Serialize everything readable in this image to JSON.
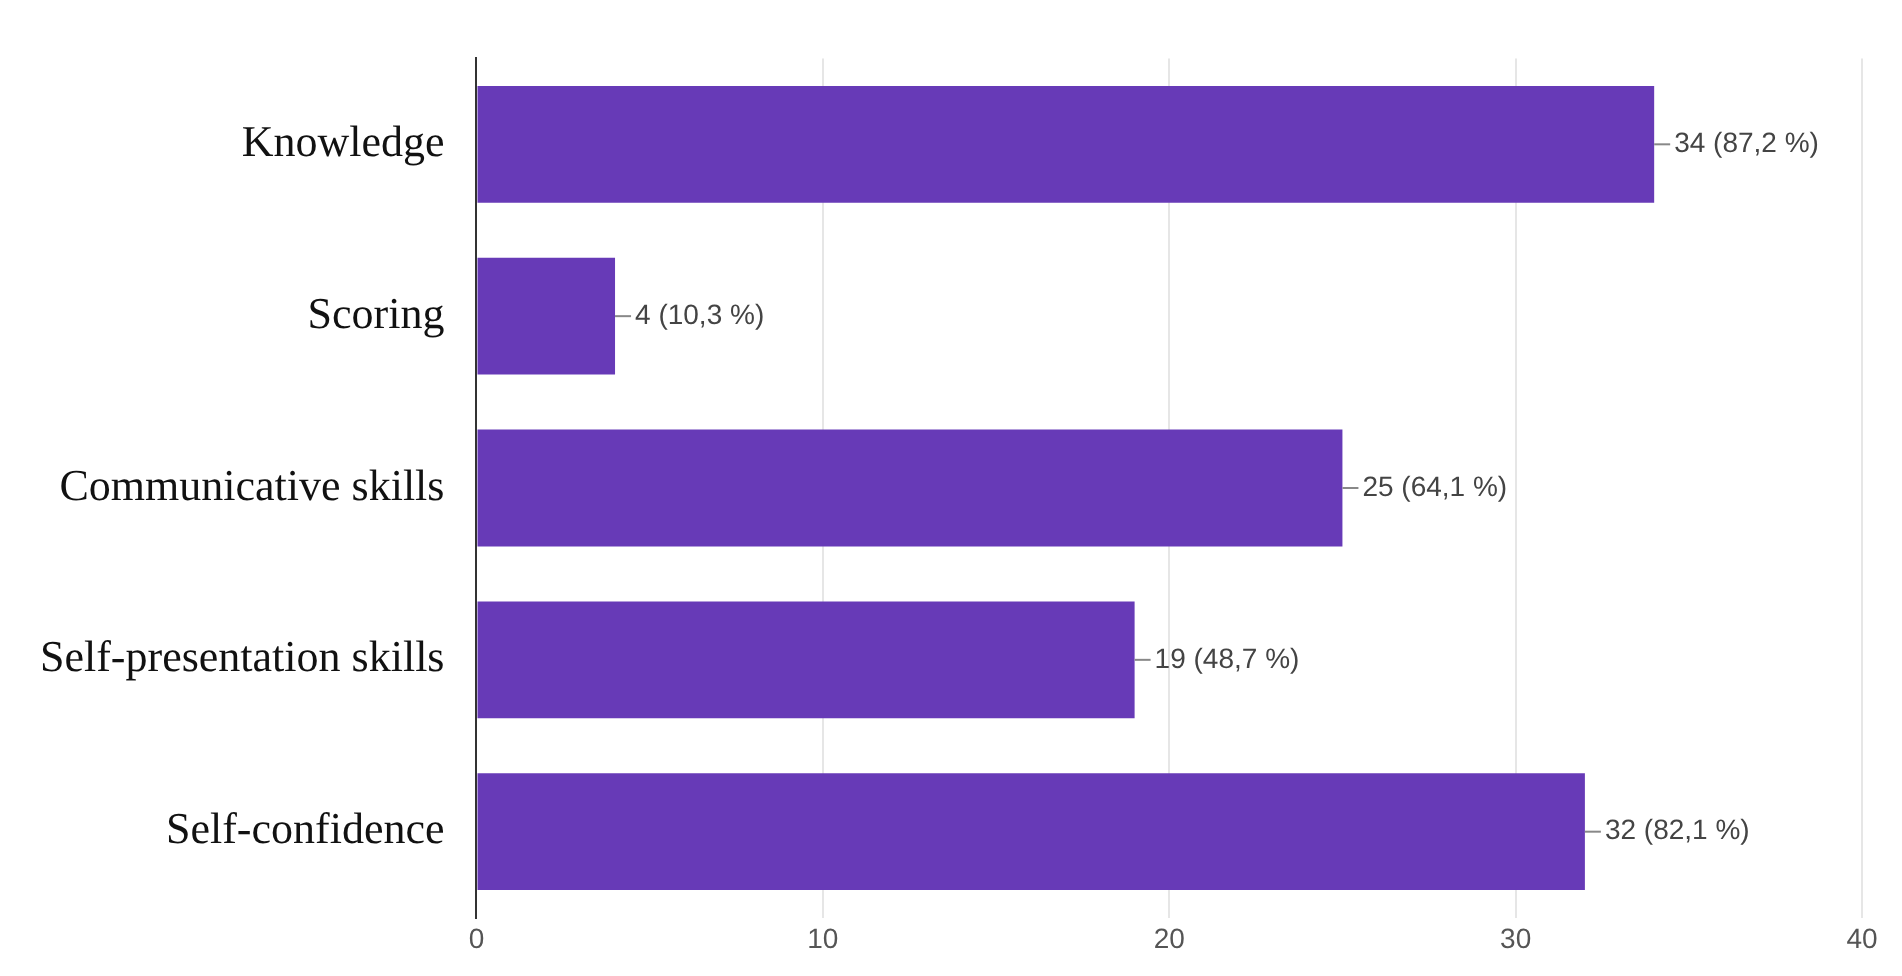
{
  "chart_data": {
    "type": "bar",
    "orientation": "horizontal",
    "categories": [
      "Knowledge",
      "Scoring",
      "Communicative skills",
      "Self-presentation skills",
      "Self-confidence"
    ],
    "values": [
      34,
      4,
      25,
      19,
      32
    ],
    "color": "#673ab7",
    "value_labels": [
      "34 (87,2 %)",
      "4 (10,3 %)",
      "25 (64,1 %)",
      "19 (48,7 %)",
      "32 (82,1 %)"
    ],
    "xlim": [
      0,
      40
    ],
    "xticks": [
      0,
      10,
      20,
      30,
      40
    ],
    "grid": "x",
    "legend": false
  }
}
